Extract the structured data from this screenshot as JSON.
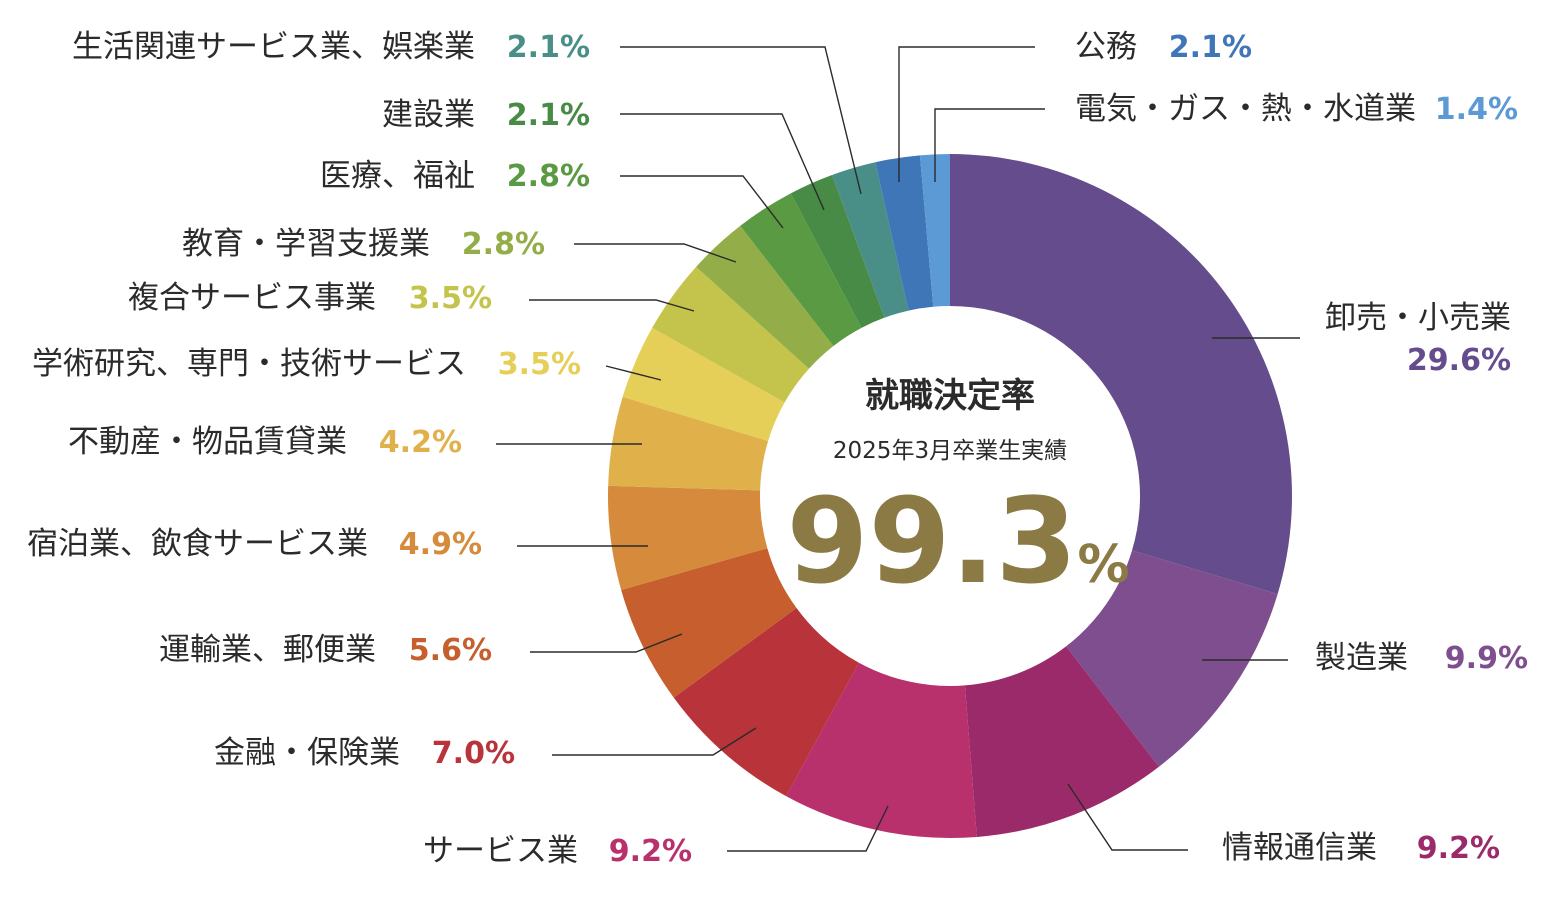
{
  "chart_data": {
    "type": "pie",
    "style": "donut",
    "center": {
      "title": "就職決定率",
      "subtitle": "2025年3月卒業生実績",
      "value": "99.3",
      "unit": "%",
      "color": "#8c7a45"
    },
    "slices": [
      {
        "name": "卸売・小売業",
        "value": 29.6,
        "label": "29.6%",
        "color": "#654d8d"
      },
      {
        "name": "製造業",
        "value": 9.9,
        "label": "9.9%",
        "color": "#7f4e8e"
      },
      {
        "name": "情報通信業",
        "value": 9.2,
        "label": "9.2%",
        "color": "#9b2a6a"
      },
      {
        "name": "サービス業",
        "value": 9.2,
        "label": "9.2%",
        "color": "#b9316c"
      },
      {
        "name": "金融・保険業",
        "value": 7.0,
        "label": "7.0%",
        "color": "#b9333a"
      },
      {
        "name": "運輸業、郵便業",
        "value": 5.6,
        "label": "5.6%",
        "color": "#c65f2d"
      },
      {
        "name": "宿泊業、飲食サービス業",
        "value": 4.9,
        "label": "4.9%",
        "color": "#d58b3b"
      },
      {
        "name": "不動産・物品賃貸業",
        "value": 4.2,
        "label": "4.2%",
        "color": "#e0b04a"
      },
      {
        "name": "学術研究、専門・技術サービス",
        "value": 3.5,
        "label": "3.5%",
        "color": "#e6cf59"
      },
      {
        "name": "複合サービス事業",
        "value": 3.5,
        "label": "3.5%",
        "color": "#c4c44d"
      },
      {
        "name": "教育・学習支援業",
        "value": 2.8,
        "label": "2.8%",
        "color": "#93ad48"
      },
      {
        "name": "医療、福祉",
        "value": 2.8,
        "label": "2.8%",
        "color": "#5a9a42"
      },
      {
        "name": "建設業",
        "value": 2.1,
        "label": "2.1%",
        "color": "#488b46"
      },
      {
        "name": "生活関連サービス業、娯楽業",
        "value": 2.1,
        "label": "2.1%",
        "color": "#4a8e88"
      },
      {
        "name": "公務",
        "value": 2.1,
        "label": "2.1%",
        "color": "#3f76b8"
      },
      {
        "name": "電気・ガス・熱・水道業",
        "value": 1.4,
        "label": "1.4%",
        "color": "#5b9ad4"
      }
    ]
  }
}
